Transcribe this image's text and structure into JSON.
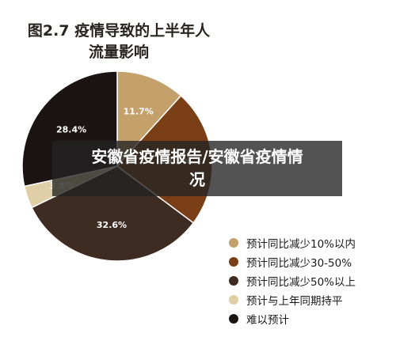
{
  "overlay": {
    "banner_text": "安徽省疫情报告/安徽省疫情情况"
  },
  "chart_data": {
    "type": "pie",
    "title_line1": "图2.7 疫情导致的上半年人",
    "title_line2": "流量影响",
    "slices": [
      {
        "name": "预计同比减少10%以内",
        "value": 11.7,
        "label": "11.7%",
        "color": "#c4a06a"
      },
      {
        "name": "预计同比减少30-50%",
        "value": 23.5,
        "label": "23.5%",
        "color": "#7a3f16"
      },
      {
        "name": "预计同比减少50%以上",
        "value": 32.6,
        "label": "32.6%",
        "color": "#3e2c22"
      },
      {
        "name": "预计与上年同期持平",
        "value": 3.8,
        "label": "3.8%",
        "color": "#e0cfa6"
      },
      {
        "name": "难以预计",
        "value": 28.4,
        "label": "28.4%",
        "color": "#1c1413"
      }
    ],
    "legend_position": "bottom-right"
  }
}
